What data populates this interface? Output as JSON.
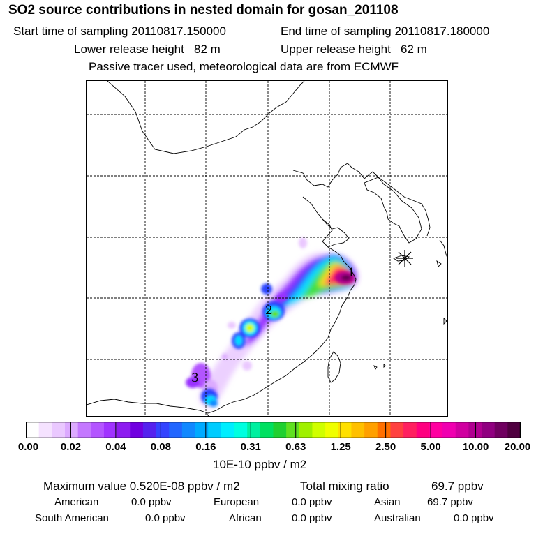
{
  "header": {
    "title": "SO2 source contributions in nested domain for gosan_201108",
    "start_label": "Start time of sampling 20110817.150000",
    "end_label": "End time of sampling 20110817.180000",
    "lower_label": "Lower release height   82 m",
    "upper_label": "Upper release height   62 m",
    "tracer_label": "Passive tracer used, meteorological data are from ECMWF"
  },
  "map": {
    "receptor_marker": "asterisk-icon",
    "source_labels": [
      "1",
      "2",
      "3"
    ]
  },
  "legend": {
    "colors": [
      "#ffffff",
      "#f5e2ff",
      "#eac8ff",
      "#dcaaff",
      "#c478ff",
      "#b355ff",
      "#a033ff",
      "#8d1cf0",
      "#7000e0",
      "#5522ee",
      "#3344ff",
      "#2266ff",
      "#1188ff",
      "#00aaff",
      "#00ccff",
      "#00eeff",
      "#00ffe0",
      "#00f0a0",
      "#00e060",
      "#20d030",
      "#60e020",
      "#a0f000",
      "#d0ff00",
      "#f0ff00",
      "#ffe000",
      "#ffc000",
      "#ffa000",
      "#ff7000",
      "#ff4040",
      "#ff2060",
      "#ff0080",
      "#ff00a0",
      "#f000b0",
      "#d000a0",
      "#b00090",
      "#900080",
      "#700060",
      "#500040"
    ],
    "ticks": [
      "0.00",
      "0.02",
      "0.04",
      "0.08",
      "0.16",
      "0.31",
      "0.63",
      "1.25",
      "2.50",
      "5.00",
      "10.00",
      "20.00"
    ],
    "unit_label": "10E-10 ppbv / m2"
  },
  "summary": {
    "max_label": "Maximum value  0.520E-08 ppbv / m2",
    "total_label": "Total mixing ratio",
    "total_value": "69.7 ppbv",
    "regions": [
      {
        "name": "American",
        "value": "0.0 ppbv"
      },
      {
        "name": "European",
        "value": "0.0 ppbv"
      },
      {
        "name": "Asian",
        "value": "69.7 ppbv"
      },
      {
        "name": "South American",
        "value": "0.0 ppbv"
      },
      {
        "name": "African",
        "value": "0.0 ppbv"
      },
      {
        "name": "Australian",
        "value": "0.0 ppbv"
      }
    ]
  },
  "colors": {
    "coast": "#000000",
    "grid": "#000000"
  }
}
